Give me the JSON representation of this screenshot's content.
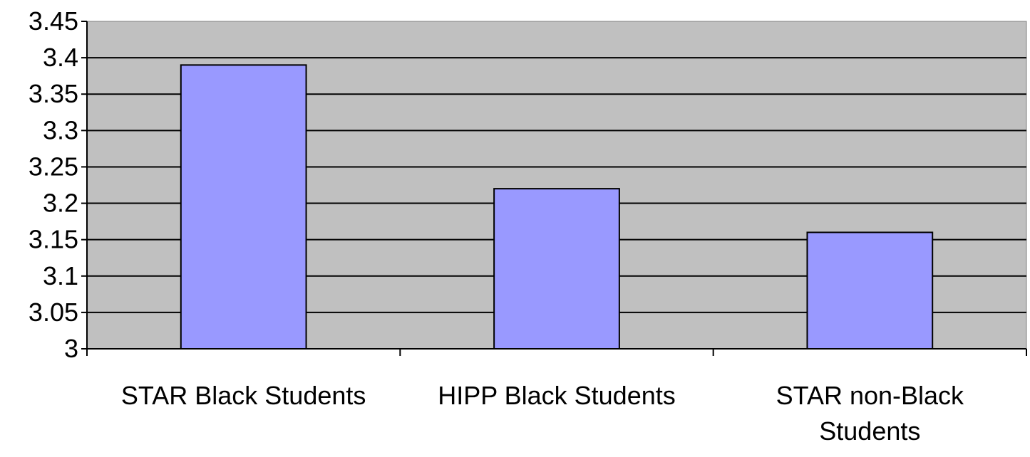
{
  "chart_data": {
    "type": "bar",
    "title": "",
    "xlabel": "",
    "ylabel": "",
    "categories": [
      [
        "STAR Black Students"
      ],
      [
        "HIPP Black Students"
      ],
      [
        "STAR non-Black",
        "Students"
      ]
    ],
    "values": [
      3.39,
      3.22,
      3.16
    ],
    "ylim": [
      3,
      3.45
    ],
    "yticks": [
      "3",
      "3.05",
      "3.1",
      "3.15",
      "3.2",
      "3.25",
      "3.3",
      "3.35",
      "3.4",
      "3.45"
    ],
    "grid": true,
    "legend": "none",
    "colors": {
      "bar_fill": "#9999ff",
      "plot_background": "#c0c0c0",
      "gridline": "#000000"
    }
  }
}
